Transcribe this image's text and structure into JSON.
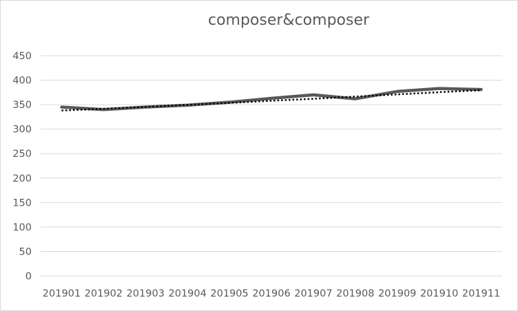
{
  "chart_data": {
    "type": "line",
    "title": "composer&composer",
    "categories": [
      "201901",
      "201902",
      "201903",
      "201904",
      "201905",
      "201906",
      "201907",
      "201908",
      "201909",
      "201910",
      "201911"
    ],
    "series": [
      {
        "values": [
          345,
          340,
          345,
          349,
          355,
          363,
          370,
          362,
          377,
          383,
          381
        ],
        "color": "#595959"
      }
    ],
    "trendline": {
      "values": [
        338,
        341.5,
        345.5,
        349.5,
        353.5,
        358,
        362,
        366.5,
        371,
        375.5,
        379.5
      ],
      "color": "#000000",
      "style": "dotted"
    },
    "ylim": [
      0,
      450
    ],
    "yticks": [
      0,
      50,
      100,
      150,
      200,
      250,
      300,
      350,
      400,
      450
    ],
    "grid": true,
    "legend": "none"
  }
}
